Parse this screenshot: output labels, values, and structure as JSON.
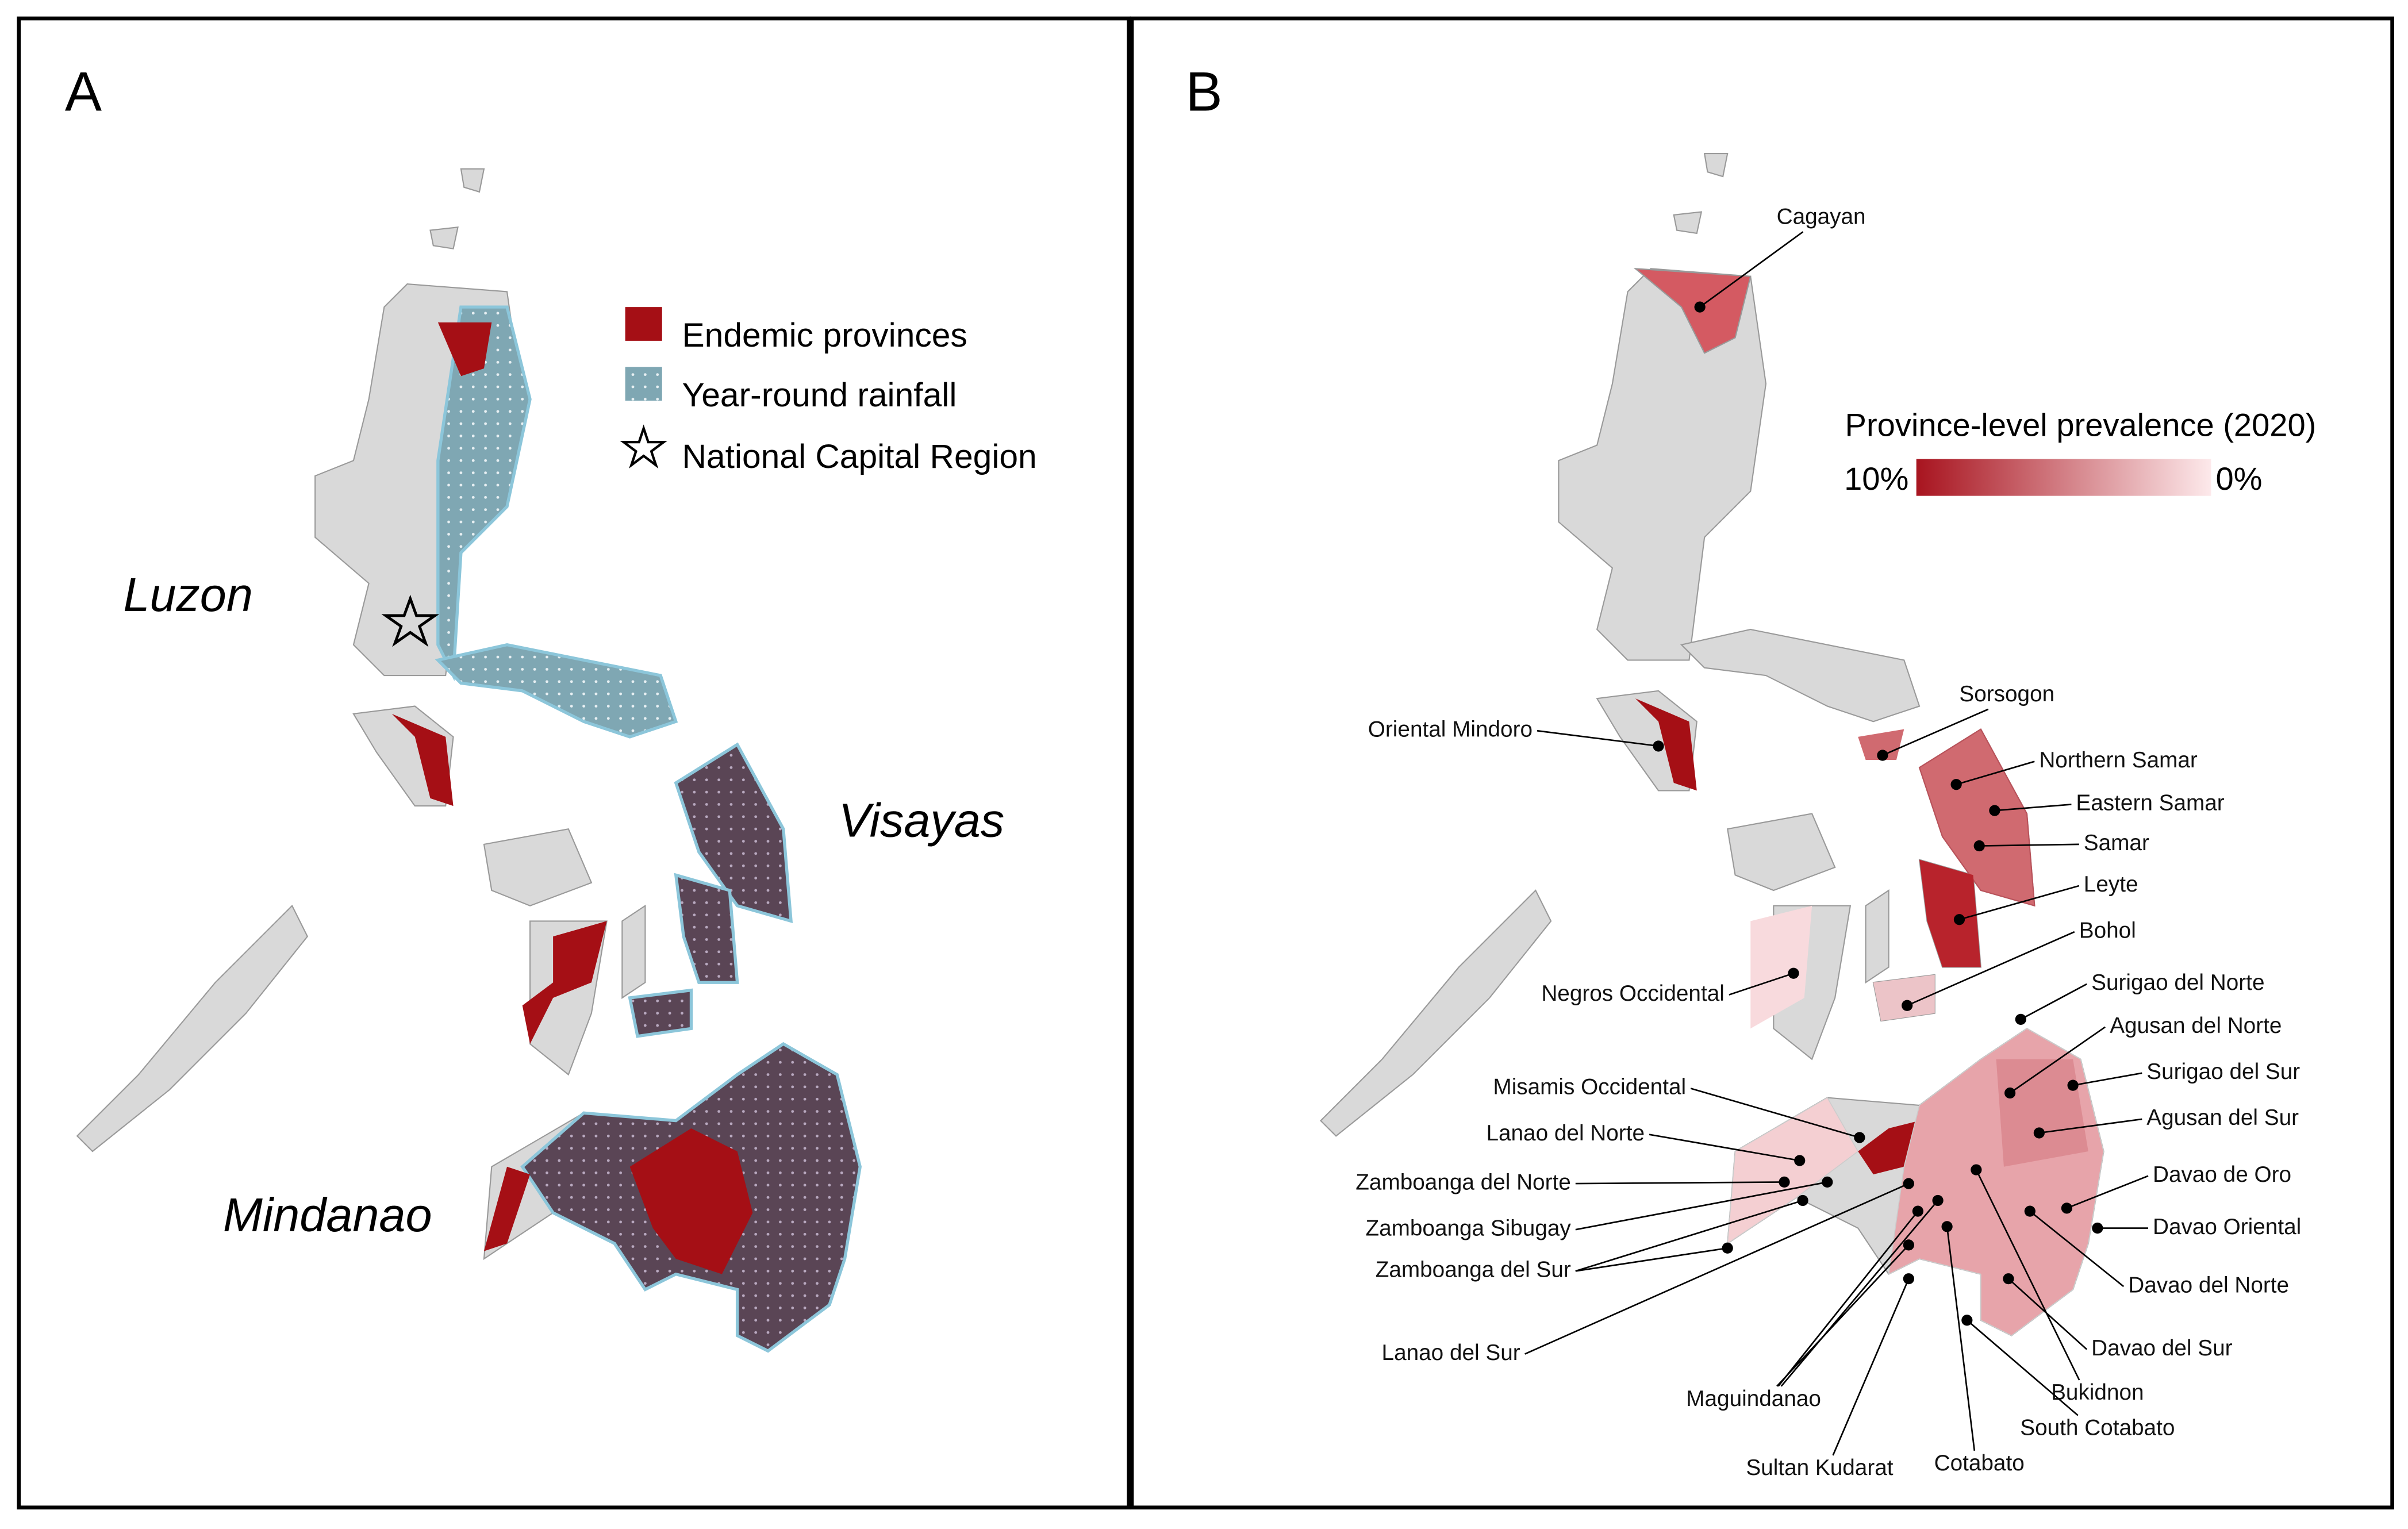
{
  "panel_a": {
    "label": "A",
    "legend": [
      "Endemic provinces",
      "Year-round rainfall",
      "National Capital Region"
    ],
    "regions": [
      "Luzon",
      "Visayas",
      "Mindanao"
    ]
  },
  "panel_b": {
    "label": "B",
    "colorbar": {
      "title": "Province-level prevalence (2020)",
      "max_label": "10%",
      "min_label": "0%"
    },
    "provinces": [
      "Cagayan",
      "Oriental Mindoro",
      "Sorsogon",
      "Northern Samar",
      "Eastern Samar",
      "Samar",
      "Leyte",
      "Bohol",
      "Negros Occidental",
      "Surigao del Norte",
      "Agusan del Norte",
      "Surigao del Sur",
      "Agusan del Sur",
      "Misamis Occidental",
      "Lanao del Norte",
      "Zamboanga del Norte",
      "Zamboanga Sibugay",
      "Zamboanga del Sur",
      "Lanao del Sur",
      "Davao de Oro",
      "Davao Oriental",
      "Davao del Norte",
      "Davao del Sur",
      "Bukidnon",
      "South Cotabato",
      "Cotabato",
      "Sultan Kudarat",
      "Maguindanao"
    ]
  }
}
